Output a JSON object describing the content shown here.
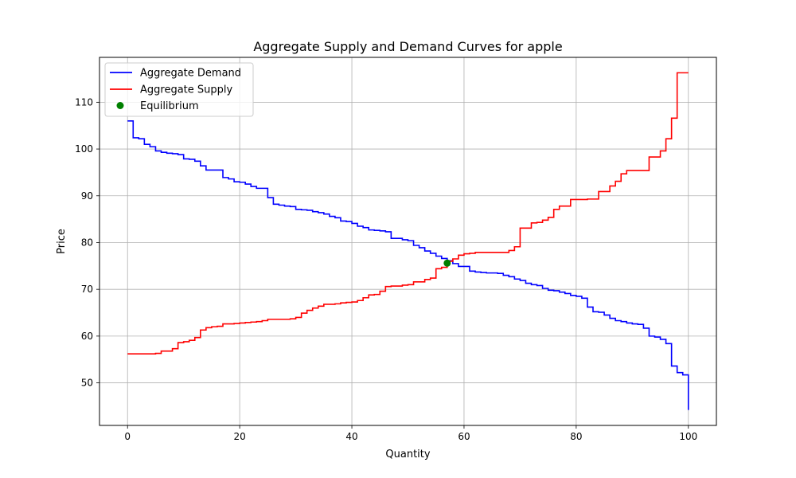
{
  "chart_data": {
    "type": "line",
    "step": "post",
    "title": "Aggregate Supply and Demand Curves for apple",
    "xlabel": "Quantity",
    "ylabel": "Price",
    "xlim": [
      -5,
      105
    ],
    "ylim": [
      40.9,
      119.6
    ],
    "xticks": [
      0,
      20,
      40,
      60,
      80,
      100
    ],
    "yticks": [
      50,
      60,
      70,
      80,
      90,
      100,
      110
    ],
    "grid": true,
    "legend_position": "top-left",
    "series": [
      {
        "name": "Aggregate Demand",
        "color": "#0000ff",
        "x": [
          0,
          1,
          2,
          3,
          4,
          5,
          6,
          7,
          8,
          9,
          10,
          11,
          12,
          13,
          14,
          15,
          16,
          17,
          18,
          19,
          20,
          21,
          22,
          23,
          24,
          25,
          26,
          27,
          28,
          29,
          30,
          31,
          32,
          33,
          34,
          35,
          36,
          37,
          38,
          39,
          40,
          41,
          42,
          43,
          44,
          45,
          46,
          47,
          48,
          49,
          50,
          51,
          52,
          53,
          54,
          55,
          56,
          57,
          58,
          59,
          60,
          61,
          62,
          63,
          64,
          65,
          66,
          67,
          68,
          69,
          70,
          71,
          72,
          73,
          74,
          75,
          76,
          77,
          78,
          79,
          80,
          81,
          82,
          83,
          84,
          85,
          86,
          87,
          88,
          89,
          90,
          91,
          92,
          93,
          94,
          95,
          96,
          97,
          98,
          99,
          100
        ],
        "y": [
          106.0,
          102.4,
          102.2,
          101.0,
          100.5,
          99.6,
          99.3,
          99.1,
          99.0,
          98.8,
          97.9,
          97.8,
          97.4,
          96.4,
          95.5,
          95.5,
          95.5,
          93.9,
          93.6,
          93.0,
          92.9,
          92.5,
          92.0,
          91.6,
          91.6,
          89.6,
          88.2,
          88.0,
          87.8,
          87.7,
          87.1,
          87.0,
          86.9,
          86.6,
          86.4,
          86.1,
          85.6,
          85.3,
          84.6,
          84.5,
          84.1,
          83.5,
          83.2,
          82.7,
          82.6,
          82.5,
          82.3,
          80.9,
          80.9,
          80.6,
          80.4,
          79.4,
          78.9,
          78.2,
          77.7,
          77.1,
          76.6,
          76.1,
          75.5,
          74.9,
          74.9,
          73.9,
          73.7,
          73.6,
          73.5,
          73.5,
          73.4,
          73.0,
          72.7,
          72.2,
          71.9,
          71.3,
          71.0,
          70.8,
          70.2,
          69.8,
          69.7,
          69.4,
          69.1,
          68.7,
          68.5,
          68.1,
          66.2,
          65.2,
          65.1,
          64.5,
          63.8,
          63.3,
          63.1,
          62.8,
          62.6,
          62.5,
          61.7,
          60.0,
          59.8,
          59.3,
          58.4,
          53.6,
          52.2,
          51.7,
          44.2
        ]
      },
      {
        "name": "Aggregate Supply",
        "color": "#ff0000",
        "x": [
          0,
          1,
          2,
          3,
          4,
          5,
          6,
          7,
          8,
          9,
          10,
          11,
          12,
          13,
          14,
          15,
          16,
          17,
          18,
          19,
          20,
          21,
          22,
          23,
          24,
          25,
          26,
          27,
          28,
          29,
          30,
          31,
          32,
          33,
          34,
          35,
          36,
          37,
          38,
          39,
          40,
          41,
          42,
          43,
          44,
          45,
          46,
          47,
          48,
          49,
          50,
          51,
          52,
          53,
          54,
          55,
          56,
          57,
          58,
          59,
          60,
          61,
          62,
          63,
          64,
          65,
          66,
          67,
          68,
          69,
          70,
          71,
          72,
          73,
          74,
          75,
          76,
          77,
          78,
          79,
          80,
          81,
          82,
          83,
          84,
          85,
          86,
          87,
          88,
          89,
          90,
          91,
          92,
          93,
          94,
          95,
          96,
          97,
          98,
          99,
          100
        ],
        "y": [
          56.2,
          56.2,
          56.2,
          56.2,
          56.2,
          56.3,
          56.8,
          56.8,
          57.3,
          58.6,
          58.8,
          59.1,
          59.7,
          61.3,
          61.8,
          62.0,
          62.1,
          62.6,
          62.6,
          62.7,
          62.8,
          62.9,
          63.0,
          63.1,
          63.3,
          63.6,
          63.6,
          63.6,
          63.6,
          63.7,
          64.0,
          64.9,
          65.5,
          66.0,
          66.4,
          66.8,
          66.8,
          66.9,
          67.1,
          67.2,
          67.3,
          67.6,
          68.2,
          68.8,
          68.9,
          69.6,
          70.6,
          70.7,
          70.7,
          70.9,
          71.0,
          71.6,
          71.6,
          72.1,
          72.4,
          74.4,
          74.7,
          76.0,
          76.5,
          77.3,
          77.6,
          77.7,
          77.9,
          77.9,
          77.9,
          77.9,
          77.9,
          77.9,
          78.3,
          79.1,
          83.1,
          83.1,
          84.2,
          84.3,
          84.8,
          85.4,
          87.1,
          87.8,
          87.8,
          89.2,
          89.2,
          89.2,
          89.3,
          89.3,
          90.9,
          90.9,
          92.1,
          93.1,
          94.7,
          95.4,
          95.4,
          95.4,
          95.4,
          98.3,
          98.3,
          99.6,
          102.2,
          106.6,
          116.3,
          116.3,
          116.3
        ]
      }
    ],
    "equilibrium": {
      "name": "Equilibrium",
      "color": "#008000",
      "x": 57,
      "y": 75.6
    }
  }
}
